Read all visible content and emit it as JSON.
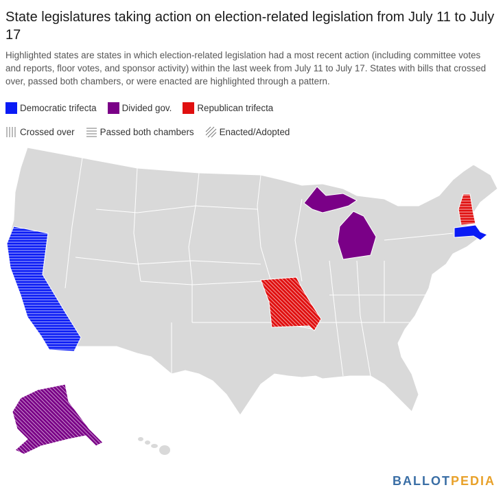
{
  "title": "State legislatures taking action on election-related legislation from July 11 to July 17",
  "subtitle": "Highlighted states are states in which election-related legislation had a most recent action (including committee votes and reports, floor votes, and sponsor activity) within the last week from July 11 to July 17. States with bills that crossed over, passed both chambers, or were enacted are highlighted through a pattern.",
  "legend": {
    "colors": [
      {
        "label": "Democratic trifecta",
        "color": "#0a1bf5"
      },
      {
        "label": "Divided gov.",
        "color": "#7a0087"
      },
      {
        "label": "Republican trifecta",
        "color": "#e00f0f"
      }
    ],
    "patterns": [
      {
        "label": "Crossed over",
        "pattern": "vertical"
      },
      {
        "label": "Passed both chambers",
        "pattern": "horizontal"
      },
      {
        "label": "Enacted/Adopted",
        "pattern": "diagonal"
      }
    ]
  },
  "map": {
    "base_color": "#d9d9d9",
    "border_color": "#ffffff",
    "highlighted_states": [
      {
        "state": "California",
        "government": "Democratic trifecta",
        "pattern": "Passed both chambers"
      },
      {
        "state": "Massachusetts",
        "government": "Democratic trifecta",
        "pattern": "none"
      },
      {
        "state": "Michigan",
        "government": "Divided gov.",
        "pattern": "none"
      },
      {
        "state": "Alaska",
        "government": "Divided gov.",
        "pattern": "Enacted/Adopted"
      },
      {
        "state": "Missouri",
        "government": "Republican trifecta",
        "pattern": "Enacted/Adopted"
      },
      {
        "state": "New Hampshire",
        "government": "Republican trifecta",
        "pattern": "Passed both chambers"
      }
    ]
  },
  "logo": {
    "part1": "BALLOT",
    "part2": "PEDIA"
  }
}
